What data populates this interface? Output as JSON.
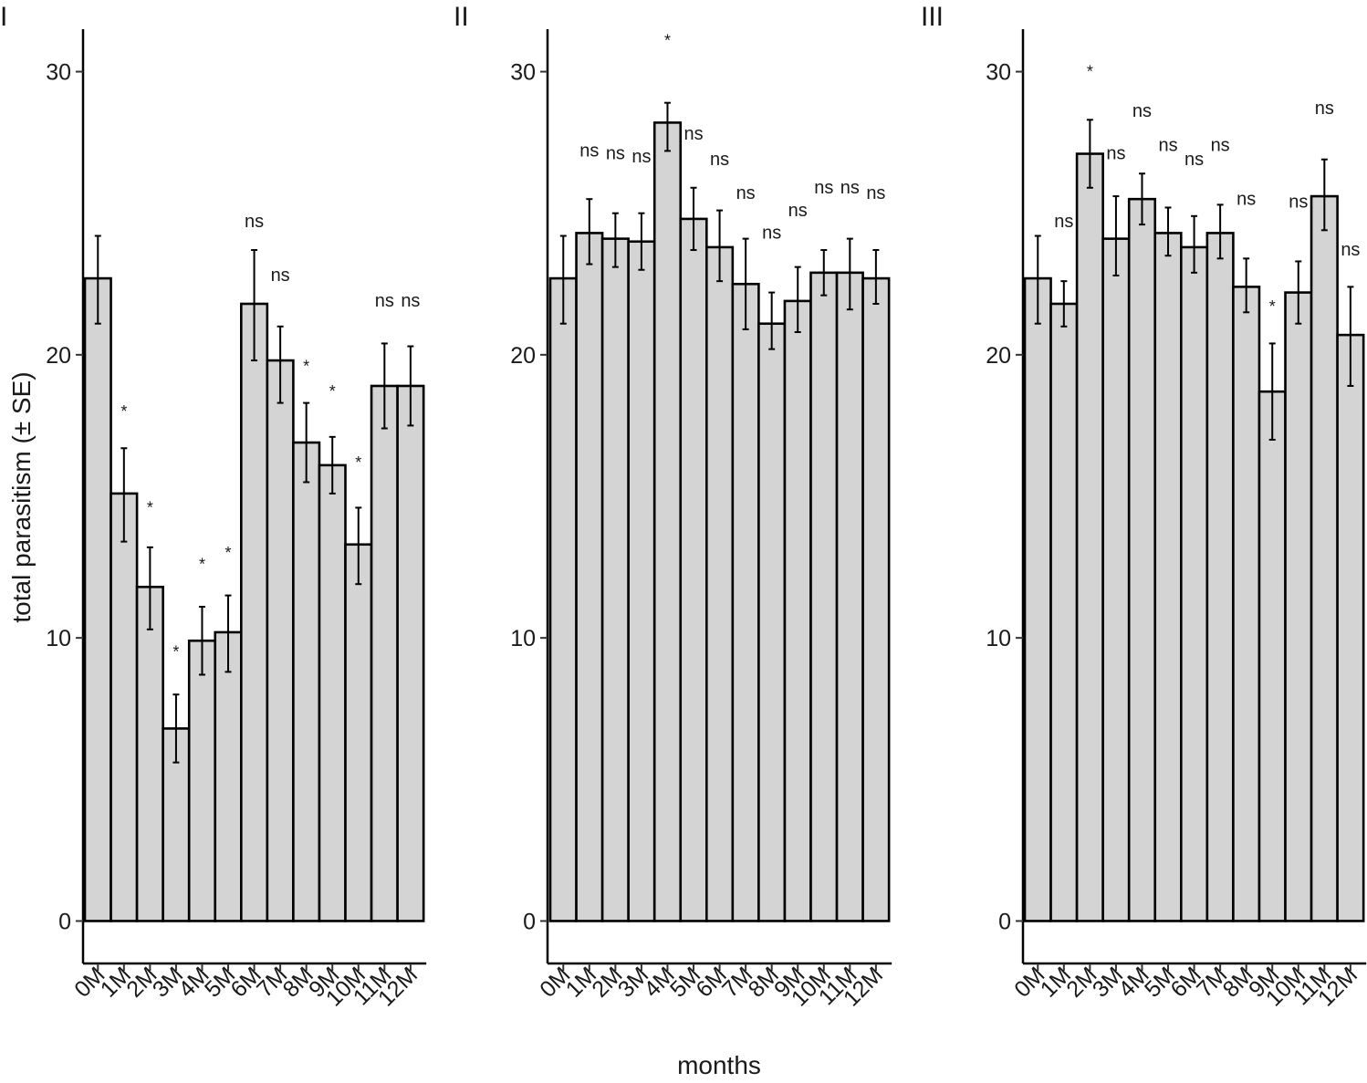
{
  "y_axis_label": "total parasitism (± SE)",
  "x_axis_label": "months",
  "chart_data": [
    {
      "type": "bar",
      "panel_label": "I",
      "categories": [
        "0M",
        "1M",
        "2M",
        "3M",
        "4M",
        "5M",
        "6M",
        "7M",
        "8M",
        "9M",
        "10M",
        "11M",
        "12M"
      ],
      "values": [
        22.7,
        15.1,
        11.8,
        6.8,
        9.9,
        10.2,
        21.8,
        19.8,
        16.9,
        16.1,
        13.3,
        18.9,
        18.9
      ],
      "se_low": [
        21.1,
        13.4,
        10.3,
        5.6,
        8.7,
        8.8,
        19.8,
        18.3,
        15.5,
        15.1,
        11.9,
        17.4,
        17.5
      ],
      "se_high": [
        24.2,
        16.7,
        13.2,
        8.0,
        11.1,
        11.5,
        23.7,
        21.0,
        18.3,
        17.1,
        14.6,
        20.4,
        20.3
      ],
      "annotations": [
        "",
        "*",
        "*",
        "*",
        "*",
        "*",
        "ns",
        "ns",
        "*",
        "*",
        "*",
        "ns",
        "ns"
      ],
      "annotation_y": [
        null,
        18.0,
        14.6,
        9.5,
        12.6,
        13.0,
        24.5,
        22.6,
        19.6,
        18.7,
        16.2,
        21.7,
        21.7
      ],
      "ylim": [
        -1.5,
        31.5
      ],
      "yticks": [
        0,
        10,
        20,
        30
      ]
    },
    {
      "type": "bar",
      "panel_label": "II",
      "categories": [
        "0M",
        "1M",
        "2M",
        "3M",
        "4M",
        "5M",
        "6M",
        "7M",
        "8M",
        "9M",
        "10M",
        "11M",
        "12M"
      ],
      "values": [
        22.7,
        24.3,
        24.1,
        24.0,
        28.2,
        24.8,
        23.8,
        22.5,
        21.1,
        21.9,
        22.9,
        22.9,
        22.7
      ],
      "se_low": [
        21.1,
        23.2,
        23.1,
        23.0,
        27.2,
        23.7,
        22.6,
        20.9,
        20.2,
        20.8,
        22.1,
        21.6,
        21.8
      ],
      "se_high": [
        24.2,
        25.5,
        25.0,
        25.0,
        28.9,
        25.9,
        25.1,
        24.1,
        22.2,
        23.1,
        23.7,
        24.1,
        23.7
      ],
      "annotations": [
        "",
        "ns",
        "ns",
        "ns",
        "*",
        "ns",
        "ns",
        "ns",
        "ns",
        "ns",
        "ns",
        "ns",
        "ns"
      ],
      "annotation_y": [
        null,
        27.0,
        26.9,
        26.8,
        31.1,
        27.6,
        26.7,
        25.5,
        24.1,
        24.9,
        25.7,
        25.7,
        25.5
      ],
      "ylim": [
        -1.5,
        31.5
      ],
      "yticks": [
        0,
        10,
        20,
        30
      ]
    },
    {
      "type": "bar",
      "panel_label": "III",
      "categories": [
        "0M",
        "1M",
        "2M",
        "3M",
        "4M",
        "5M",
        "6M",
        "7M",
        "8M",
        "9M",
        "10M",
        "11M",
        "12M"
      ],
      "values": [
        22.7,
        21.8,
        27.1,
        24.1,
        25.5,
        24.3,
        23.8,
        24.3,
        22.4,
        18.7,
        22.2,
        25.6,
        20.7
      ],
      "se_low": [
        21.1,
        21.0,
        25.9,
        22.8,
        24.6,
        23.5,
        22.9,
        23.4,
        21.5,
        17.0,
        21.1,
        24.4,
        18.9
      ],
      "se_high": [
        24.2,
        22.6,
        28.3,
        25.6,
        26.4,
        25.2,
        24.9,
        25.3,
        23.4,
        20.4,
        23.3,
        26.9,
        22.4
      ],
      "annotations": [
        "",
        "ns",
        "*",
        "ns",
        "ns",
        "ns",
        "ns",
        "ns",
        "ns",
        "*",
        "ns",
        "ns",
        "ns"
      ],
      "annotation_y": [
        null,
        24.5,
        30.0,
        26.9,
        28.4,
        27.2,
        26.7,
        27.2,
        25.3,
        21.7,
        25.2,
        28.5,
        23.5
      ],
      "ylim": [
        -1.5,
        31.5
      ],
      "yticks": [
        0,
        10,
        20,
        30
      ]
    }
  ]
}
